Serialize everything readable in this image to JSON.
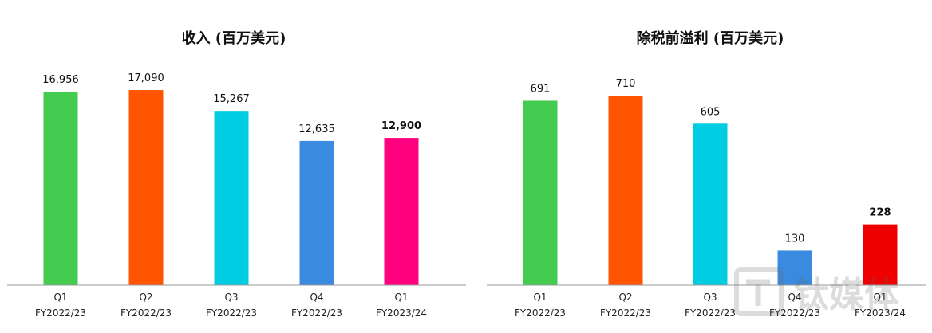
{
  "chart_data": [
    {
      "type": "bar",
      "title": "收入 (百万美元)",
      "categories": [
        [
          "Q1",
          "FY2022/23"
        ],
        [
          "Q2",
          "FY2022/23"
        ],
        [
          "Q3",
          "FY2022/23"
        ],
        [
          "Q4",
          "FY2022/23"
        ],
        [
          "Q1",
          "FY2023/24"
        ]
      ],
      "values": [
        16956,
        17090,
        15267,
        12635,
        12900
      ],
      "value_labels": [
        "16,956",
        "17,090",
        "15,267",
        "12,635",
        "12,900"
      ],
      "bold_value_index": 4,
      "colors": [
        "#43CC4F",
        "#FF5500",
        "#00CDE1",
        "#3A8BDF",
        "#FF007F"
      ],
      "ylim": [
        0,
        18000
      ],
      "grid": false,
      "legend": "none"
    },
    {
      "type": "bar",
      "title": "除税前溢利 (百万美元)",
      "categories": [
        [
          "Q1",
          "FY2022/23"
        ],
        [
          "Q2",
          "FY2022/23"
        ],
        [
          "Q3",
          "FY2022/23"
        ],
        [
          "Q4",
          "FY2022/23"
        ],
        [
          "Q1",
          "FY2023/24"
        ]
      ],
      "values": [
        691,
        710,
        605,
        130,
        228
      ],
      "value_labels": [
        "691",
        "710",
        "605",
        "130",
        "228"
      ],
      "bold_value_index": 4,
      "colors": [
        "#43CC4F",
        "#FF5500",
        "#00CDE1",
        "#3A8BDF",
        "#EE0000"
      ],
      "ylim": [
        0,
        770
      ],
      "grid": false,
      "legend": "none"
    }
  ],
  "watermark": {
    "icon": "tmt-logo-icon",
    "text": "钛媒体"
  }
}
